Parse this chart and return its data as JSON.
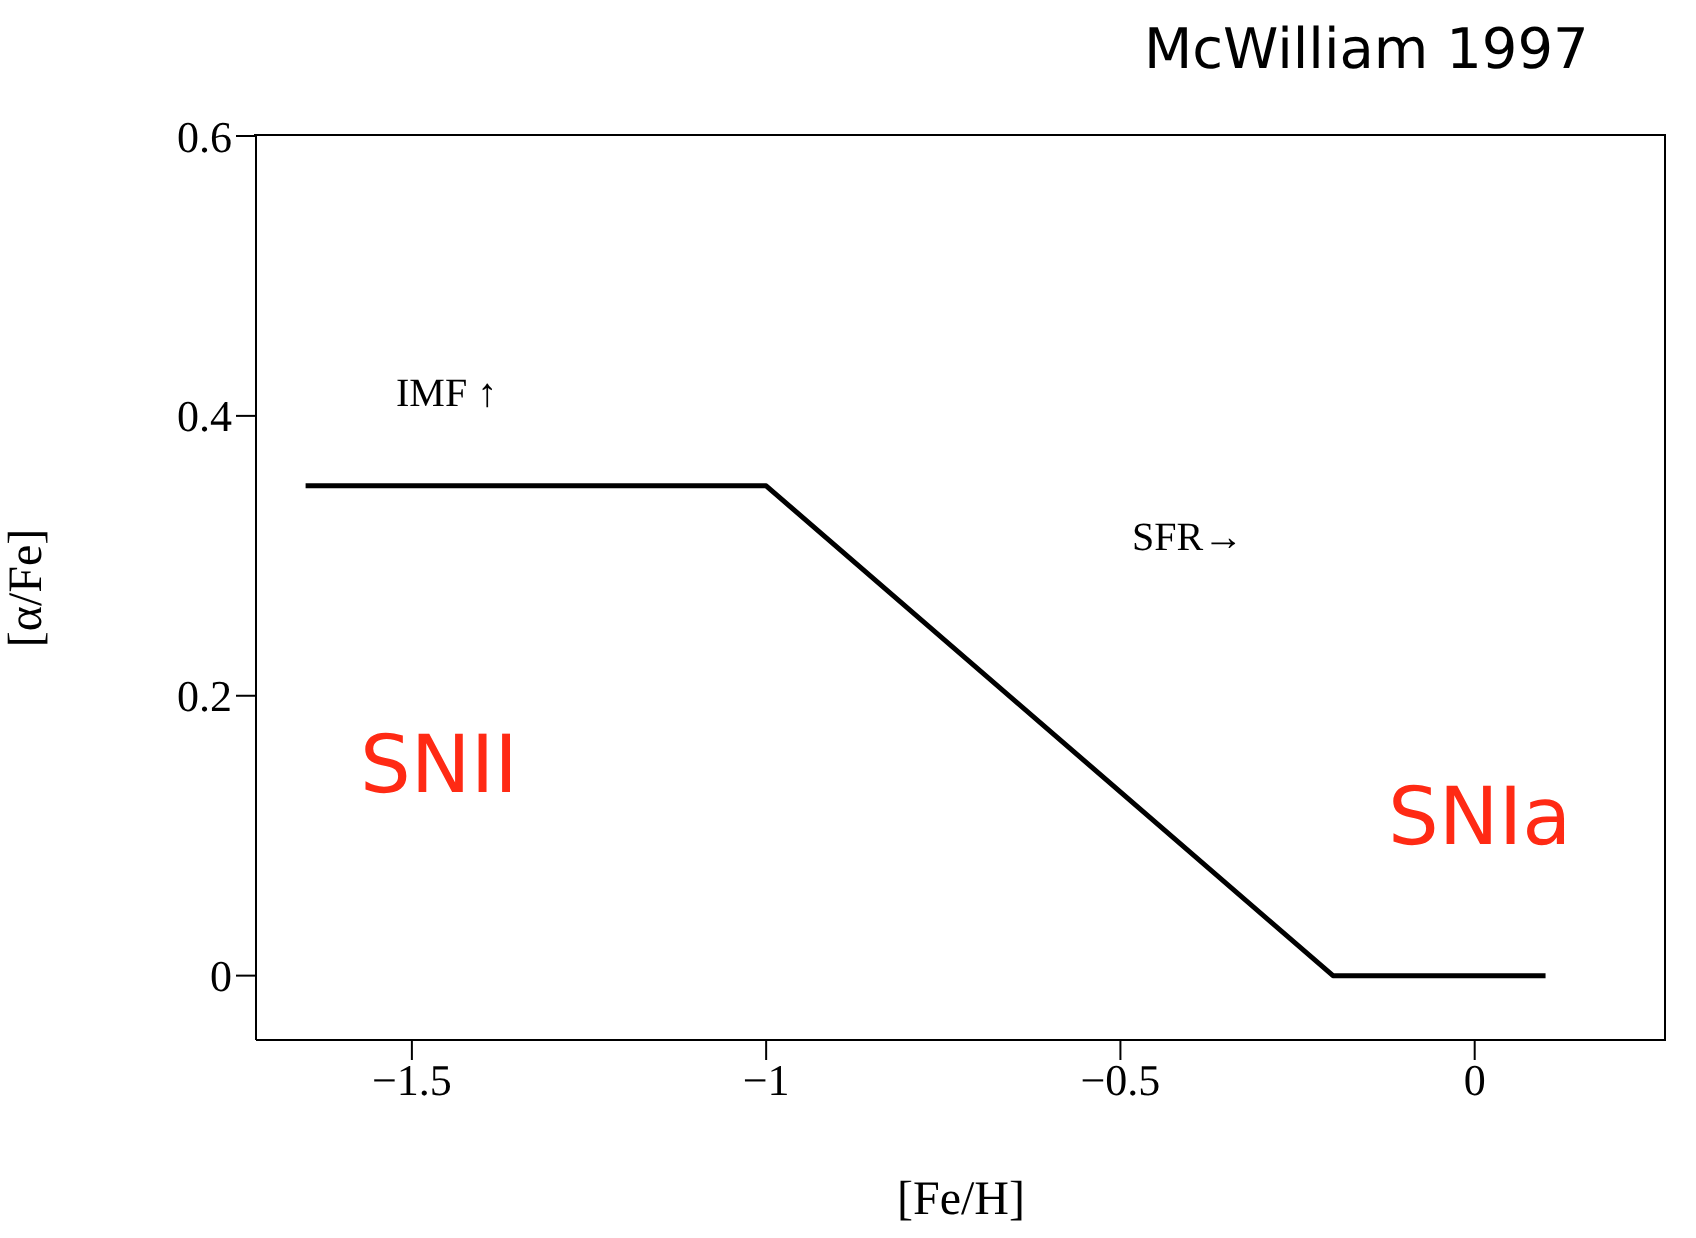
{
  "chart_data": {
    "type": "line",
    "xlabel": "[Fe/H]",
    "ylabel": "[α/Fe]",
    "x": [
      -1.65,
      -1.0,
      -0.2,
      0.1
    ],
    "series": [
      {
        "color": "#000000",
        "values": [
          0.35,
          0.35,
          0,
          0
        ]
      }
    ],
    "xlim": [
      -1.72,
      0.27
    ],
    "ylim": [
      -0.046,
      0.6
    ],
    "xticks": [
      {
        "value": -1.5,
        "label": "−1.5"
      },
      {
        "value": -1,
        "label": "−1"
      },
      {
        "value": -0.5,
        "label": "−0.5"
      },
      0
    ],
    "yticks": [
      0,
      0.2,
      0.4,
      0.6
    ],
    "marker": "none",
    "line_style": "solid",
    "annotations": [
      "McWilliam 1997",
      "IMF ↑",
      "SFR→",
      "SNII",
      "SNIa"
    ]
  }
}
